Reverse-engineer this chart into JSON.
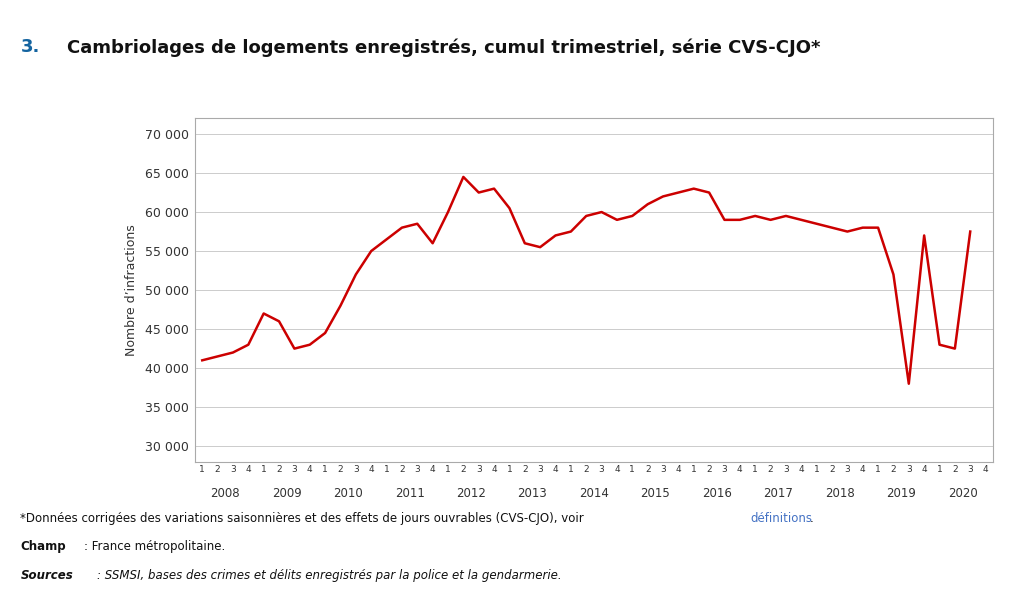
{
  "title_number": "3.",
  "title_text": " Cambriolages de logements enregistrés, cumul trimestriel, série CVS-CJO*",
  "ylabel": "Nombre d’infractions",
  "ylim": [
    28000,
    72000
  ],
  "yticks": [
    30000,
    35000,
    40000,
    45000,
    50000,
    55000,
    60000,
    65000,
    70000
  ],
  "ytick_labels": [
    "30 000",
    "35 000",
    "40 000",
    "45 000",
    "50 000",
    "55 000",
    "60 000",
    "65 000",
    "70 000"
  ],
  "line_color": "#cc0000",
  "line_width": 1.8,
  "background_color": "#ffffff",
  "grid_color": "#cccccc",
  "years": [
    2008,
    2009,
    2010,
    2011,
    2012,
    2013,
    2014,
    2015,
    2016,
    2017,
    2018,
    2019,
    2020
  ],
  "quarters": [
    "1",
    "2",
    "3",
    "4",
    "1",
    "2",
    "3",
    "4",
    "1",
    "2",
    "3",
    "4",
    "1",
    "2",
    "3",
    "4",
    "1",
    "2",
    "3",
    "4",
    "1",
    "2",
    "3",
    "4",
    "1",
    "2",
    "3",
    "4",
    "1",
    "2",
    "3",
    "4",
    "1",
    "2",
    "3",
    "4",
    "1",
    "2",
    "3",
    "4",
    "1",
    "2",
    "3",
    "4",
    "1",
    "2",
    "3",
    "4",
    "1",
    "2",
    "3",
    "4"
  ],
  "values": [
    41000,
    41500,
    42000,
    43000,
    47000,
    46000,
    42500,
    43000,
    44500,
    48000,
    52000,
    55000,
    56500,
    58000,
    58500,
    56000,
    60000,
    64500,
    62500,
    63000,
    60500,
    56000,
    55500,
    57000,
    57500,
    59500,
    60000,
    59000,
    59500,
    61000,
    62000,
    62500,
    63000,
    62500,
    59000,
    59000,
    59500,
    59000,
    59500,
    59000,
    58500,
    58000,
    57500,
    58000,
    58000,
    52000,
    38000,
    57000,
    43000,
    42500,
    57500,
    null
  ]
}
